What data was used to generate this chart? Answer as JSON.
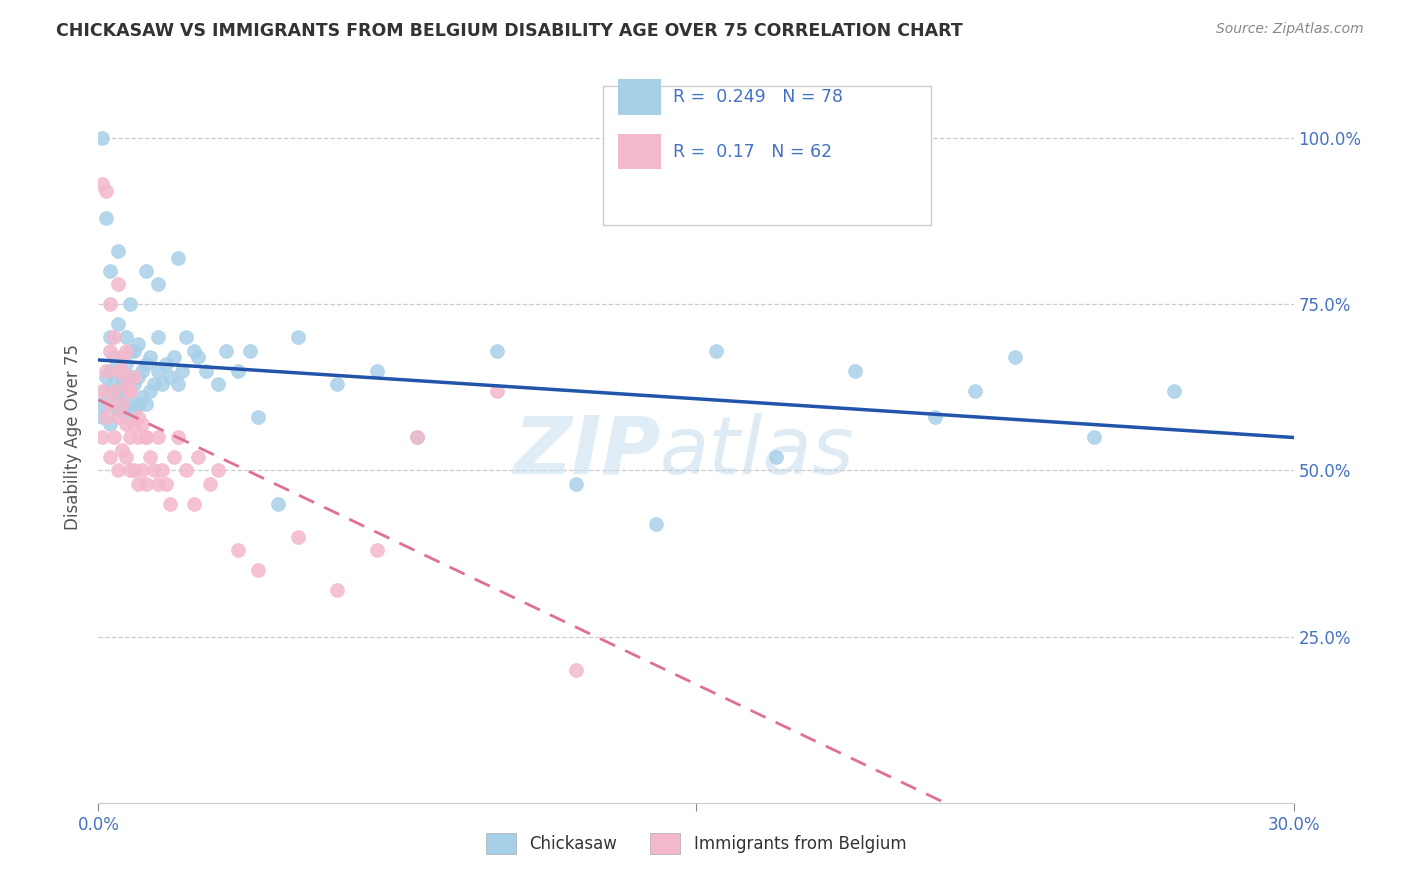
{
  "title": "CHICKASAW VS IMMIGRANTS FROM BELGIUM DISABILITY AGE OVER 75 CORRELATION CHART",
  "source": "Source: ZipAtlas.com",
  "ylabel": "Disability Age Over 75",
  "legend1_label": "Chickasaw",
  "legend2_label": "Immigrants from Belgium",
  "R1": 0.249,
  "N1": 78,
  "R2": 0.17,
  "N2": 62,
  "watermark_zip": "ZIP",
  "watermark_atlas": "atlas",
  "blue_color": "#a8cfe8",
  "pink_color": "#f4b8cc",
  "blue_line_color": "#2255aa",
  "pink_line_color": "#e07090",
  "axis_label_color": "#4472c4",
  "title_color": "#333333",
  "source_color": "#888888",
  "xlim": [
    0.0,
    0.3
  ],
  "ylim": [
    0.0,
    1.1
  ],
  "ytick_positions": [
    0.25,
    0.5,
    0.75,
    1.0
  ],
  "ytick_labels": [
    "25.0%",
    "50.0%",
    "75.0%",
    "100.0%"
  ],
  "blue_scatter_x": [
    0.001,
    0.001,
    0.002,
    0.002,
    0.003,
    0.003,
    0.003,
    0.004,
    0.004,
    0.004,
    0.005,
    0.005,
    0.005,
    0.005,
    0.006,
    0.006,
    0.006,
    0.007,
    0.007,
    0.007,
    0.007,
    0.008,
    0.008,
    0.008,
    0.009,
    0.009,
    0.009,
    0.01,
    0.01,
    0.01,
    0.011,
    0.011,
    0.012,
    0.012,
    0.013,
    0.013,
    0.014,
    0.015,
    0.015,
    0.016,
    0.017,
    0.018,
    0.019,
    0.02,
    0.021,
    0.022,
    0.024,
    0.025,
    0.027,
    0.03,
    0.032,
    0.035,
    0.038,
    0.04,
    0.045,
    0.05,
    0.06,
    0.07,
    0.08,
    0.1,
    0.12,
    0.14,
    0.155,
    0.17,
    0.19,
    0.21,
    0.22,
    0.23,
    0.25,
    0.27,
    0.001,
    0.002,
    0.003,
    0.005,
    0.008,
    0.012,
    0.015,
    0.02
  ],
  "blue_scatter_y": [
    0.6,
    0.58,
    0.62,
    0.64,
    0.57,
    0.65,
    0.7,
    0.6,
    0.63,
    0.67,
    0.59,
    0.61,
    0.65,
    0.72,
    0.6,
    0.63,
    0.67,
    0.58,
    0.62,
    0.66,
    0.7,
    0.6,
    0.64,
    0.68,
    0.59,
    0.63,
    0.68,
    0.6,
    0.64,
    0.69,
    0.61,
    0.65,
    0.6,
    0.66,
    0.62,
    0.67,
    0.63,
    0.65,
    0.7,
    0.63,
    0.66,
    0.64,
    0.67,
    0.63,
    0.65,
    0.7,
    0.68,
    0.67,
    0.65,
    0.63,
    0.68,
    0.65,
    0.68,
    0.58,
    0.45,
    0.7,
    0.63,
    0.65,
    0.55,
    0.68,
    0.48,
    0.42,
    0.68,
    0.52,
    0.65,
    0.58,
    0.62,
    0.67,
    0.55,
    0.62,
    1.0,
    0.88,
    0.8,
    0.83,
    0.75,
    0.8,
    0.78,
    0.82
  ],
  "pink_scatter_x": [
    0.001,
    0.001,
    0.002,
    0.002,
    0.003,
    0.003,
    0.003,
    0.004,
    0.004,
    0.005,
    0.005,
    0.005,
    0.006,
    0.006,
    0.006,
    0.007,
    0.007,
    0.007,
    0.008,
    0.008,
    0.008,
    0.009,
    0.009,
    0.009,
    0.01,
    0.01,
    0.011,
    0.011,
    0.012,
    0.012,
    0.013,
    0.014,
    0.015,
    0.015,
    0.016,
    0.017,
    0.018,
    0.019,
    0.02,
    0.022,
    0.024,
    0.025,
    0.028,
    0.03,
    0.035,
    0.04,
    0.05,
    0.06,
    0.07,
    0.08,
    0.1,
    0.12,
    0.001,
    0.002,
    0.003,
    0.004,
    0.005,
    0.006,
    0.007,
    0.008,
    0.01,
    0.012
  ],
  "pink_scatter_y": [
    0.55,
    0.62,
    0.58,
    0.65,
    0.52,
    0.6,
    0.68,
    0.55,
    0.62,
    0.5,
    0.58,
    0.65,
    0.53,
    0.6,
    0.67,
    0.52,
    0.57,
    0.63,
    0.5,
    0.55,
    0.62,
    0.5,
    0.57,
    0.64,
    0.48,
    0.55,
    0.5,
    0.57,
    0.48,
    0.55,
    0.52,
    0.5,
    0.48,
    0.55,
    0.5,
    0.48,
    0.45,
    0.52,
    0.55,
    0.5,
    0.45,
    0.52,
    0.48,
    0.5,
    0.38,
    0.35,
    0.4,
    0.32,
    0.38,
    0.55,
    0.62,
    0.2,
    0.93,
    0.92,
    0.75,
    0.7,
    0.78,
    0.65,
    0.68,
    0.62,
    0.58,
    0.55
  ]
}
